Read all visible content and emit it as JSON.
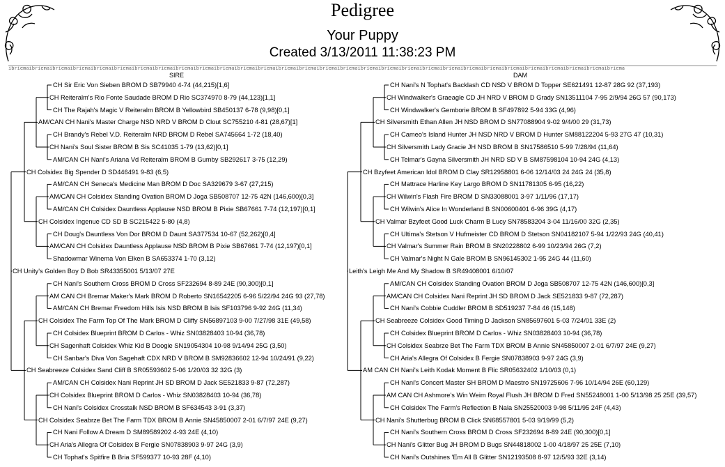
{
  "title": "Pedigree",
  "subtitle": "Your Puppy",
  "created": "Created 3/13/2011 11:38:23 PM",
  "divider_pattern": "ibriemaibriemaibriemaibriemaibriemaibriemaibriemaibriemaibriemaibriemaibriemaibriemaibriemaibriemaibriemaibriemaibriemaibriemaibriemaibriemaibriemaibriemaibriemaibriemaibriemaibriemaibriemaibriemaibriemaibriema",
  "sire_header": "SIRE",
  "dam_header": "DAM",
  "ornament_icon": "scroll-flourish-icon",
  "sire": [
    "CH Sir Eric Von Sieben BROM D SB79940 4-74 (44,215)[1,6]",
    "CH Reiteralm's Rio Fonte Saudade BROM D Rio SC374970 8-79 (44,123)[1,1]",
    "CH The Rajah's Magic V Reiteralm BROM B Yellowbird SB450137 6-78 (9,98)[0,1]",
    "AM/CAN CH Nani's Master Charge NSD NRD V BROM D Clout SC755210 4-81 (28,67)[1]",
    "CH Brandy's Rebel V.D. Reiteralm NRD BROM D Rebel SA745664 1-72 (18,40)",
    "CH Nani's Soul Sister BROM B Sis SC41035 1-79 (13,62)[0,1]",
    "AM/CAN CH Nani's Ariana Vd Reiteralm BROM B Gumby SB292617 3-75 (12,29)",
    "CH Colsidex Big Spender D SD446491 9-83 (6,5)",
    "AM/CAN CH Seneca's Medicine Man BROM D Doc SA329679 3-67 (27,215)",
    "AM/CAN CH Colsidex Standing Ovation BROM D Joga SB508707 12-75 42N (146,600)[0,3]",
    "AM/CAN CH Colsidex Dauntless Applause NSD BROM B Pixie SB67661 7-74 (12,197)[0,1]",
    "CH Colsidex Ingenue CD SD B SC215422 5-80 (4,8)",
    "CH Doug's Dauntless Von Dor BROM D Daunt SA377534 10-67 (52,262)[0,4]",
    "AM/CAN CH Colsidex Dauntless Applause NSD BROM B Pixie SB67661 7-74 (12,197)[0,1]",
    "Shadowmar Winema Von Elken B SA653374 1-70 (3,12)",
    "CH Unity's Golden Boy D Bob SR43355001 5/13/07 27E",
    "CH Nani's Southern Cross BROM D Cross SF232694 8-89 24E (90,300)[0,1]",
    "AM CAN CH Bremar Maker's Mark BROM D Roberto SN16542205 6-96 5/22/94 24G 93 (27,78)",
    "AM/CAN CH Bremar Freedom Hills Isis NSD BROM B Isis SF103796 9-92 24G (11,34)",
    "CH Colsidex The Farm Top Of The Mark BROM D Cliffy SN56897103 9-00 7/27/98 31E (49,58)",
    "CH Colsidex Blueprint BROM D Carlos - Whiz SN03828403 10-94 (36,78)",
    "CH Sagenhaft Colsidex Whiz Kid B Doogie SN19054304 10-98 9/14/94 25G (3,50)",
    "CH Sanbar's Diva Von Sagehaft CDX NRD V BROM B SM92836602 12-94 10/24/91 (9,22)",
    "CH Seabreeze Colsidex Sand Cliff B SR05593602 5-06 1/20/03 32 32G (3)",
    "AM/CAN CH Colsidex Nani Reprint JH SD BROM D Jack SE521833 9-87 (72,287)",
    "CH Colsidex Blueprint BROM D Carlos - Whiz SN03828403 10-94 (36,78)",
    "CH Nani's Colsidex Crosstalk NSD BROM B SF634543 3-91 (3,37)",
    "CH Colsidex Seabrze Bet The Farm TDX BROM B Annie SN45850007 2-01 6/7/97 24E (9,27)",
    "CH Nani Follow A Dream D SM89589202 4-93 24E (4,10)",
    "CH Aria's Allegra Of Colsidex B Fergie SN07838903 9-97 24G (3,9)",
    "CH Tophat's Spitfire B Bria SF599377 10-93 28F (4,10)"
  ],
  "dam": [
    "CH Nani's N Tophat's Backlash CD NSD V BROM D Topper SE621491 12-87 28G 92 (37,193)",
    "CH Windwalker's Graeagle CD JH NRD V BROM D Grady SN13511104 7-95 2/9/94 26G 57 (90,173)",
    "CH Windwalker's Gemborie BROM B SF497892 5-94 33G (4,96)",
    "CH Silversmith Ethan Allen JH NSD BROM D SN77088904 9-02 9/4/00 29 (31,73)",
    "CH Cameo's Island Hunter JH NSD NRD V BROM D Hunter SM88122204 5-93 27G 47 (10,31)",
    "CH Silversmith Lady Gracie JH NSD BROM B SN17586510 5-99 7/28/94 (11,64)",
    "CH Telmar's Gayna Silversmith JH NRD SD V B SM87598104 10-94 24G (4,13)",
    "CH Bzyfeet American Idol BROM D Clay SR12958801 6-06 12/14/03 24 24G 24 (35,8)",
    "CH Mattrace Harline Key Largo BROM D SN11781305 6-95 (16,22)",
    "CH Wilwin's Flash Fire BROM D SN33088001 3-97 1/11/96 (17,17)",
    "CH Wilwin's Alice In Wonderland B SN00600401 6-96 39G (4,17)",
    "CH Valmar Bzyfeet Good Luck Charm B Lucy SN78583204 3-04 11/16/00 32G (2,35)",
    "CH Ultima's Stetson V Hufmeister CD BROM D Stetson SN04182107 5-94 1/22/93 24G (40,41)",
    "CH Valmar's Summer Rain BROM B SN20228802 6-99 10/23/94 26G (7,2)",
    "CH Valmar's Night N Gale BROM B SN96145302 1-95 24G 44 (11,60)",
    "Leith's Leigh Me And My Shadow B SR49408001 6/10/07",
    "AM/CAN CH Colsidex Standing Ovation BROM D Joga SB508707 12-75 42N (146,600)[0,3]",
    "AM/CAN CH Colsidex Nani Reprint JH SD BROM D Jack SE521833 9-87 (72,287)",
    "CH Nani's Cobbie Cuddler BROM B SD519237 7-84 46 (15,148)",
    "CH Seabreeze Colsidex Good Timing D Jackson SN85697601 5-03 7/24/01 33E (2)",
    "CH Colsidex Blueprint BROM D Carlos - Whiz SN03828403 10-94 (36,78)",
    "CH Colsidex Seabrze Bet The Farm TDX BROM B Annie SN45850007 2-01 6/7/97 24E (9,27)",
    "CH Aria's Allegra Of Colsidex B Fergie SN07838903 9-97 24G (3,9)",
    "AM CAN CH Nani's Leith Kodak Moment B Flic SR05632402 1/10/03 (0,1)",
    "CH Nani's Concert Master SH BROM D Maestro SN19725606 7-96 10/14/94 26E (60,129)",
    "AM CAN CH Ashmore's Win Weim Royal Flush JH BROM D Fred SN55248001 1-00 5/13/98 25 25E (39,57)",
    "CH Colsidex The Farm's Reflection B Nala SN25520003 9-98 5/11/95 24F (4,43)",
    "CH Nani's Shutterbug BROM B Click SN68557801 5-03 9/19/99 (5,2)",
    "CH Nani's Southern Cross BROM D Cross SF232694 8-89 24E (90,300)[0,1]",
    "CH Nani's Glitter Bug JH BROM D Bugs SN44818002 1-00 4/18/97 25 25E (7,10)",
    "CH Nani's Outshines 'Em All B Glitter SN12193508 8-97 12/5/93 32E (3,14)"
  ]
}
